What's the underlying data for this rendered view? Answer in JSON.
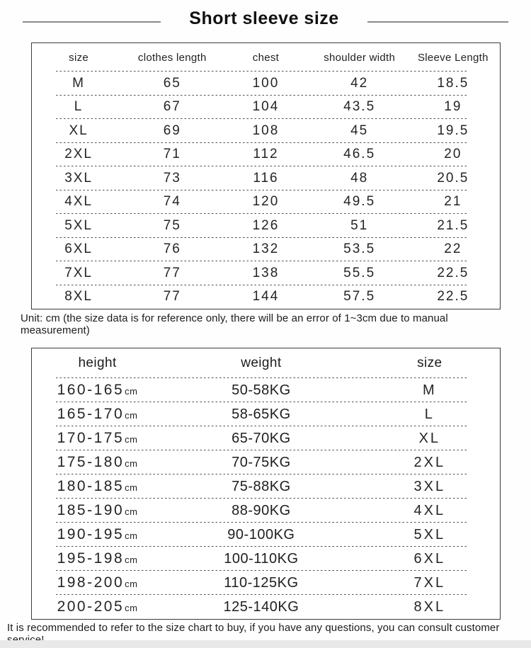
{
  "title": "Short sleeve size",
  "colors": {
    "table_border": "#3b3b3b",
    "dash_line": "#4f4f4f",
    "text": "#1f1f1f",
    "title_line": "#8a8a8a",
    "bottom_strip": "#e9e9e9"
  },
  "table1": {
    "headers": [
      "size",
      "clothes length",
      "chest",
      "shoulder width",
      "Sleeve Length"
    ],
    "rows": [
      {
        "size": "M",
        "length": "65",
        "chest": "100",
        "shoulder": "42",
        "sleeve": "18.5"
      },
      {
        "size": "L",
        "length": "67",
        "chest": "104",
        "shoulder": "43.5",
        "sleeve": "19"
      },
      {
        "size": "XL",
        "length": "69",
        "chest": "108",
        "shoulder": "45",
        "sleeve": "19.5"
      },
      {
        "size": "2XL",
        "length": "71",
        "chest": "112",
        "shoulder": "46.5",
        "sleeve": "20"
      },
      {
        "size": "3XL",
        "length": "73",
        "chest": "116",
        "shoulder": "48",
        "sleeve": "20.5"
      },
      {
        "size": "4XL",
        "length": "74",
        "chest": "120",
        "shoulder": "49.5",
        "sleeve": "21"
      },
      {
        "size": "5XL",
        "length": "75",
        "chest": "126",
        "shoulder": "51",
        "sleeve": "21.5"
      },
      {
        "size": "6XL",
        "length": "76",
        "chest": "132",
        "shoulder": "53.5",
        "sleeve": "22"
      },
      {
        "size": "7XL",
        "length": "77",
        "chest": "138",
        "shoulder": "55.5",
        "sleeve": "22.5"
      },
      {
        "size": "8XL",
        "length": "77",
        "chest": "144",
        "shoulder": "57.5",
        "sleeve": "22.5"
      }
    ]
  },
  "unit_note": "Unit: cm (the size data is for reference only, there will be an error of 1~3cm due to manual measurement)",
  "table2": {
    "headers": [
      "height",
      "weight",
      "size"
    ],
    "rows": [
      {
        "height": "160-165",
        "height_unit": "cm",
        "weight": "50-58KG",
        "size": "M"
      },
      {
        "height": "165-170",
        "height_unit": "cm",
        "weight": "58-65KG",
        "size": "L"
      },
      {
        "height": "170-175",
        "height_unit": "cm",
        "weight": "65-70KG",
        "size": "XL"
      },
      {
        "height": "175-180",
        "height_unit": "cm",
        "weight": "70-75KG",
        "size": "2XL"
      },
      {
        "height": "180-185",
        "height_unit": "cm",
        "weight": "75-88KG",
        "size": "3XL"
      },
      {
        "height": "185-190",
        "height_unit": "cm",
        "weight": "88-90KG",
        "size": "4XL"
      },
      {
        "height": "190-195",
        "height_unit": "cm",
        "weight": "90-100KG",
        "size": "5XL"
      },
      {
        "height": "195-198",
        "height_unit": "cm",
        "weight": "100-110KG",
        "size": "6XL"
      },
      {
        "height": "198-200",
        "height_unit": "cm",
        "weight": "110-125KG",
        "size": "7XL"
      },
      {
        "height": "200-205",
        "height_unit": "cm",
        "weight": "125-140KG",
        "size": "8XL"
      }
    ]
  },
  "footer_note": "It is recommended to refer to the size chart to buy, if you have any questions, you can consult customer service!"
}
